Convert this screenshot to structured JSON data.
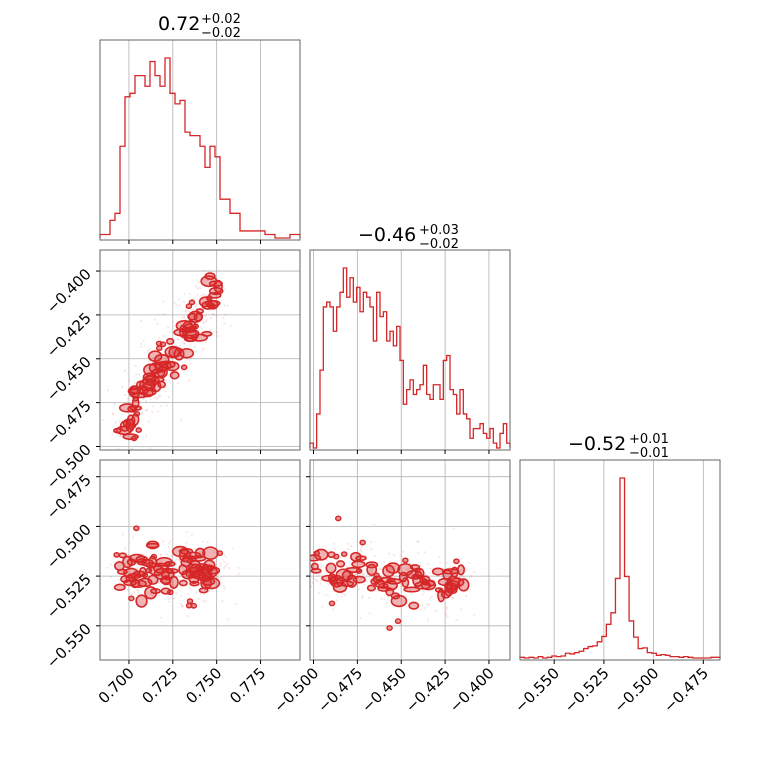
{
  "chart_data": {
    "type": "corner",
    "color": "#d62728",
    "grid": true,
    "parameters": [
      {
        "title_value": "0.72",
        "err_plus": "+0.02",
        "err_minus": "−0.02",
        "range": [
          0.6835,
          0.7975
        ],
        "ticks": [
          0.7,
          0.725,
          0.75,
          0.775
        ],
        "tick_labels": [
          "0.700",
          "0.725",
          "0.750",
          "0.775"
        ]
      },
      {
        "title_value": "−0.46",
        "err_plus": "+0.03",
        "err_minus": "−0.02",
        "range": [
          -0.502,
          -0.388
        ],
        "ticks": [
          -0.5,
          -0.475,
          -0.45,
          -0.425,
          -0.4
        ],
        "tick_labels": [
          "−0.500",
          "−0.475",
          "−0.450",
          "−0.425",
          "−0.400"
        ]
      },
      {
        "title_value": "−0.52",
        "err_plus": "+0.01",
        "err_minus": "−0.01",
        "range": [
          -0.5672,
          -0.4666
        ],
        "ticks": [
          -0.55,
          -0.525,
          -0.5,
          -0.475
        ],
        "tick_labels": [
          "−0.550",
          "−0.525",
          "−0.500",
          "−0.475"
        ]
      }
    ],
    "histograms": [
      {
        "param": 0,
        "values": [
          1,
          1,
          5,
          7,
          26,
          40,
          41,
          46,
          46,
          43,
          50,
          46,
          43,
          51,
          41,
          38,
          39,
          30,
          29,
          29,
          26,
          20,
          26,
          23,
          11,
          11,
          7,
          7,
          2,
          2,
          2,
          2,
          2,
          1,
          1,
          0,
          0,
          0,
          1,
          1
        ]
      },
      {
        "param": 1,
        "values": [
          1,
          0,
          7,
          16,
          29,
          30,
          29,
          24,
          29,
          32,
          37,
          31,
          35,
          30,
          33,
          28,
          32,
          31,
          29,
          22,
          32,
          27,
          28,
          22,
          24,
          21,
          25,
          18,
          9,
          12,
          14,
          11,
          12,
          13,
          17,
          11,
          10,
          13,
          13,
          10,
          18,
          19,
          12,
          11,
          7,
          12,
          7,
          6,
          2,
          4,
          4,
          5,
          3,
          2,
          4,
          1,
          0,
          3,
          5,
          1
        ]
      },
      {
        "param": 2,
        "values": [
          1,
          0,
          1,
          0,
          2,
          0,
          1,
          3,
          2,
          3,
          7,
          6,
          8,
          10,
          14,
          17,
          18,
          24,
          32,
          50,
          67,
          118,
          267,
          121,
          55,
          31,
          14,
          15,
          8,
          7,
          4,
          5,
          4,
          2,
          2,
          1,
          2,
          1,
          0,
          0,
          0,
          0,
          1,
          1
        ]
      }
    ],
    "scatter_panels": [
      {
        "x_param": 0,
        "y_param": 1,
        "trend": {
          "x": [
            0.695,
            0.75
          ],
          "y": [
            -0.489,
            -0.411
          ]
        },
        "spread": 0.006
      },
      {
        "x_param": 0,
        "y_param": 2,
        "trend": {
          "x": [
            0.695,
            0.75
          ],
          "y": [
            -0.523,
            -0.523
          ]
        },
        "spread": 0.006
      },
      {
        "x_param": 1,
        "y_param": 2,
        "trend": {
          "x": [
            -0.5,
            -0.415
          ],
          "y": [
            -0.524,
            -0.528
          ]
        },
        "spread": 0.005
      }
    ]
  }
}
